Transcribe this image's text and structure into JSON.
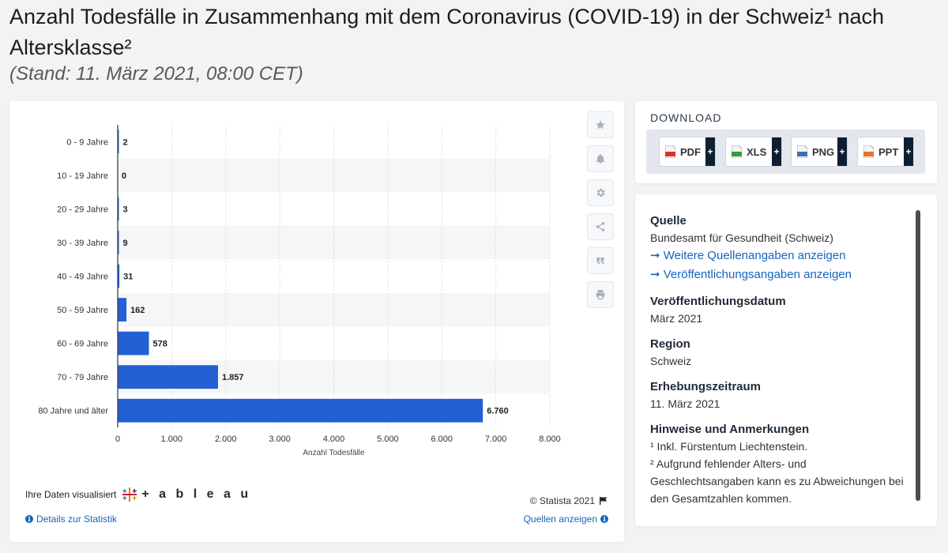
{
  "header": {
    "title": "Anzahl Todesfälle in Zusammenhang mit dem Coronavirus (COVID-19) in der Schweiz¹ nach Altersklasse²",
    "subtitle": "(Stand: 11. März 2021, 08:00 CET)"
  },
  "chart_data": {
    "type": "bar",
    "orientation": "horizontal",
    "categories": [
      "0 - 9 Jahre",
      "10 - 19 Jahre",
      "20 - 29 Jahre",
      "30 - 39 Jahre",
      "40 - 49 Jahre",
      "50 - 59 Jahre",
      "60 - 69 Jahre",
      "70 - 79 Jahre",
      "80 Jahre und älter"
    ],
    "values": [
      2,
      0,
      3,
      9,
      31,
      162,
      578,
      1857,
      6760
    ],
    "value_labels": [
      "2",
      "0",
      "3",
      "9",
      "31",
      "162",
      "578",
      "1.857",
      "6.760"
    ],
    "xlabel": "Anzahl Todesfälle",
    "xlim": [
      0,
      8000
    ],
    "xticks": [
      0,
      1000,
      2000,
      3000,
      4000,
      5000,
      6000,
      7000,
      8000
    ],
    "xtick_labels": [
      "0",
      "1.000",
      "2.000",
      "3.000",
      "4.000",
      "5.000",
      "6.000",
      "7.000",
      "8.000"
    ],
    "bar_color": "#2260d4",
    "grid": true
  },
  "toolbar": {
    "icons": [
      "star-icon",
      "bell-icon",
      "gear-icon",
      "share-icon",
      "quote-icon",
      "print-icon"
    ]
  },
  "chart_footer": {
    "visualized_text": "Ihre Daten visualisiert",
    "tableau_word": "+ a b l e a u",
    "copyright": "© Statista 2021",
    "details_link": "Details zur Statistik",
    "sources_link": "Quellen anzeigen"
  },
  "download": {
    "title": "DOWNLOAD",
    "buttons": [
      {
        "label": "PDF",
        "color": "#d9342b"
      },
      {
        "label": "XLS",
        "color": "#3c9a3c"
      },
      {
        "label": "PNG",
        "color": "#3f6fb5"
      },
      {
        "label": "PPT",
        "color": "#e2742b"
      }
    ],
    "plus": "+"
  },
  "info": {
    "source_heading": "Quelle",
    "source_text": "Bundesamt für Gesundheit (Schweiz)",
    "source_link_1": "➞ Weitere Quellenangaben anzeigen",
    "source_link_2": "➞ Veröffentlichungsangaben anzeigen",
    "pub_heading": "Veröffentlichungsdatum",
    "pub_text": "März 2021",
    "region_heading": "Region",
    "region_text": "Schweiz",
    "period_heading": "Erhebungszeitraum",
    "period_text": "11. März 2021",
    "notes_heading": "Hinweise und Anmerkungen",
    "note_1": "¹ Inkl. Fürstentum Liechtenstein.",
    "note_2": "² Aufgrund fehlender Alters- und Geschlechtsangaben kann es zu Abweichungen bei den Gesamtzahlen kommen."
  }
}
